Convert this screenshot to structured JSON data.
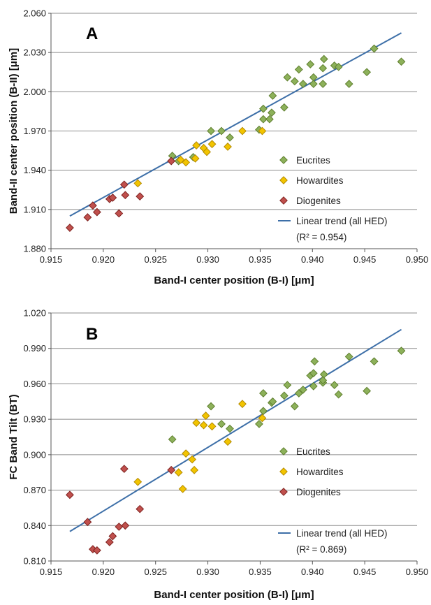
{
  "colors": {
    "eucrites_fill": "#8db15a",
    "eucrites_stroke": "#5f7f2f",
    "howardites_fill": "#f2c400",
    "howardites_stroke": "#b38a00",
    "diogenites_fill": "#c0504d",
    "diogenites_stroke": "#7f2320",
    "trend_line": "#3d6fa8",
    "grid": "#8c8c8c"
  },
  "chart_data": [
    {
      "type": "scatter",
      "panel_label": "A",
      "xlabel": "Band-I center position (B-I)  [μm]",
      "ylabel": "Band-II center position (B-II)  [μm]",
      "xlim": [
        0.915,
        0.95
      ],
      "ylim": [
        1.88,
        2.06
      ],
      "x_ticks": [
        "0.915",
        "0.920",
        "0.925",
        "0.930",
        "0.935",
        "0.940",
        "0.945",
        "0.950"
      ],
      "y_ticks": [
        "1.880",
        "1.910",
        "1.940",
        "1.970",
        "2.000",
        "2.030",
        "2.060"
      ],
      "grid": "horizontal",
      "legend_position": "right",
      "series": [
        {
          "name": "Eucrites",
          "color_key": "eucrites",
          "points": [
            [
              0.9266,
              1.951
            ],
            [
              0.9272,
              1.947
            ],
            [
              0.9286,
              1.95
            ],
            [
              0.9303,
              1.97
            ],
            [
              0.9313,
              1.97
            ],
            [
              0.9321,
              1.965
            ],
            [
              0.9349,
              1.971
            ],
            [
              0.9353,
              1.987
            ],
            [
              0.9353,
              1.979
            ],
            [
              0.9359,
              1.979
            ],
            [
              0.9361,
              1.984
            ],
            [
              0.9362,
              1.997
            ],
            [
              0.9373,
              1.988
            ],
            [
              0.9376,
              2.011
            ],
            [
              0.9383,
              2.008
            ],
            [
              0.9387,
              2.017
            ],
            [
              0.9391,
              2.006
            ],
            [
              0.9398,
              2.021
            ],
            [
              0.9401,
              2.011
            ],
            [
              0.9401,
              2.006
            ],
            [
              0.941,
              2.018
            ],
            [
              0.941,
              2.006
            ],
            [
              0.9411,
              2.025
            ],
            [
              0.9421,
              2.02
            ],
            [
              0.9425,
              2.019
            ],
            [
              0.9435,
              2.006
            ],
            [
              0.9452,
              2.015
            ],
            [
              0.9459,
              2.033
            ],
            [
              0.9485,
              2.023
            ]
          ]
        },
        {
          "name": "Howardites",
          "color_key": "howardites",
          "points": [
            [
              0.9233,
              1.93
            ],
            [
              0.9274,
              1.948
            ],
            [
              0.9279,
              1.946
            ],
            [
              0.9288,
              1.949
            ],
            [
              0.9289,
              1.959
            ],
            [
              0.9296,
              1.957
            ],
            [
              0.9299,
              1.954
            ],
            [
              0.9304,
              1.96
            ],
            [
              0.9319,
              1.958
            ],
            [
              0.9333,
              1.97
            ],
            [
              0.9352,
              1.97
            ]
          ]
        },
        {
          "name": "Diogenites",
          "color_key": "diogenites",
          "points": [
            [
              0.9168,
              1.896
            ],
            [
              0.9185,
              1.904
            ],
            [
              0.919,
              1.913
            ],
            [
              0.9194,
              1.908
            ],
            [
              0.9206,
              1.918
            ],
            [
              0.9209,
              1.919
            ],
            [
              0.9215,
              1.907
            ],
            [
              0.922,
              1.929
            ],
            [
              0.9221,
              1.921
            ],
            [
              0.9235,
              1.92
            ],
            [
              0.9265,
              1.947
            ]
          ]
        }
      ],
      "trend": {
        "name": "Linear trend (all HED)",
        "r2_label": "(R² = 0.954)",
        "x": [
          0.9168,
          0.9485
        ],
        "y": [
          1.905,
          2.045
        ]
      }
    },
    {
      "type": "scatter",
      "panel_label": "B",
      "xlabel": "Band-I center position (B-I)  [μm]",
      "ylabel": "FC Band Tilt (BT)",
      "xlim": [
        0.915,
        0.95
      ],
      "ylim": [
        0.81,
        1.02
      ],
      "x_ticks": [
        "0.915",
        "0.920",
        "0.925",
        "0.930",
        "0.935",
        "0.940",
        "0.945",
        "0.950"
      ],
      "y_ticks": [
        "0.810",
        "0.840",
        "0.870",
        "0.900",
        "0.930",
        "0.960",
        "0.990",
        "1.020"
      ],
      "grid": "horizontal",
      "legend_position": "right",
      "series": [
        {
          "name": "Eucrites",
          "color_key": "eucrites",
          "points": [
            [
              0.9266,
              0.913
            ],
            [
              0.9303,
              0.941
            ],
            [
              0.9313,
              0.926
            ],
            [
              0.9321,
              0.922
            ],
            [
              0.9349,
              0.926
            ],
            [
              0.9353,
              0.952
            ],
            [
              0.9353,
              0.937
            ],
            [
              0.9361,
              0.944
            ],
            [
              0.9362,
              0.945
            ],
            [
              0.9373,
              0.95
            ],
            [
              0.9376,
              0.959
            ],
            [
              0.9383,
              0.941
            ],
            [
              0.9387,
              0.952
            ],
            [
              0.9391,
              0.955
            ],
            [
              0.9398,
              0.967
            ],
            [
              0.9401,
              0.969
            ],
            [
              0.9402,
              0.979
            ],
            [
              0.9401,
              0.958
            ],
            [
              0.941,
              0.961
            ],
            [
              0.9411,
              0.968
            ],
            [
              0.941,
              0.963
            ],
            [
              0.9421,
              0.959
            ],
            [
              0.9425,
              0.951
            ],
            [
              0.9435,
              0.983
            ],
            [
              0.9452,
              0.954
            ],
            [
              0.9459,
              0.979
            ],
            [
              0.9485,
              0.988
            ]
          ]
        },
        {
          "name": "Howardites",
          "color_key": "howardites",
          "points": [
            [
              0.9233,
              0.877
            ],
            [
              0.9272,
              0.885
            ],
            [
              0.9276,
              0.871
            ],
            [
              0.9279,
              0.901
            ],
            [
              0.9285,
              0.896
            ],
            [
              0.9287,
              0.887
            ],
            [
              0.9289,
              0.927
            ],
            [
              0.9296,
              0.925
            ],
            [
              0.9298,
              0.933
            ],
            [
              0.9304,
              0.924
            ],
            [
              0.9319,
              0.911
            ],
            [
              0.9333,
              0.943
            ],
            [
              0.9352,
              0.931
            ]
          ]
        },
        {
          "name": "Diogenites",
          "color_key": "diogenites",
          "points": [
            [
              0.9168,
              0.866
            ],
            [
              0.9185,
              0.843
            ],
            [
              0.919,
              0.82
            ],
            [
              0.9194,
              0.819
            ],
            [
              0.9206,
              0.826
            ],
            [
              0.9209,
              0.831
            ],
            [
              0.9215,
              0.839
            ],
            [
              0.922,
              0.888
            ],
            [
              0.9221,
              0.84
            ],
            [
              0.9235,
              0.854
            ],
            [
              0.9265,
              0.887
            ]
          ]
        }
      ],
      "trend": {
        "name": "Linear trend (all HED)",
        "r2_label": "(R² = 0.869)",
        "x": [
          0.9168,
          0.9485
        ],
        "y": [
          0.835,
          1.006
        ]
      }
    }
  ]
}
